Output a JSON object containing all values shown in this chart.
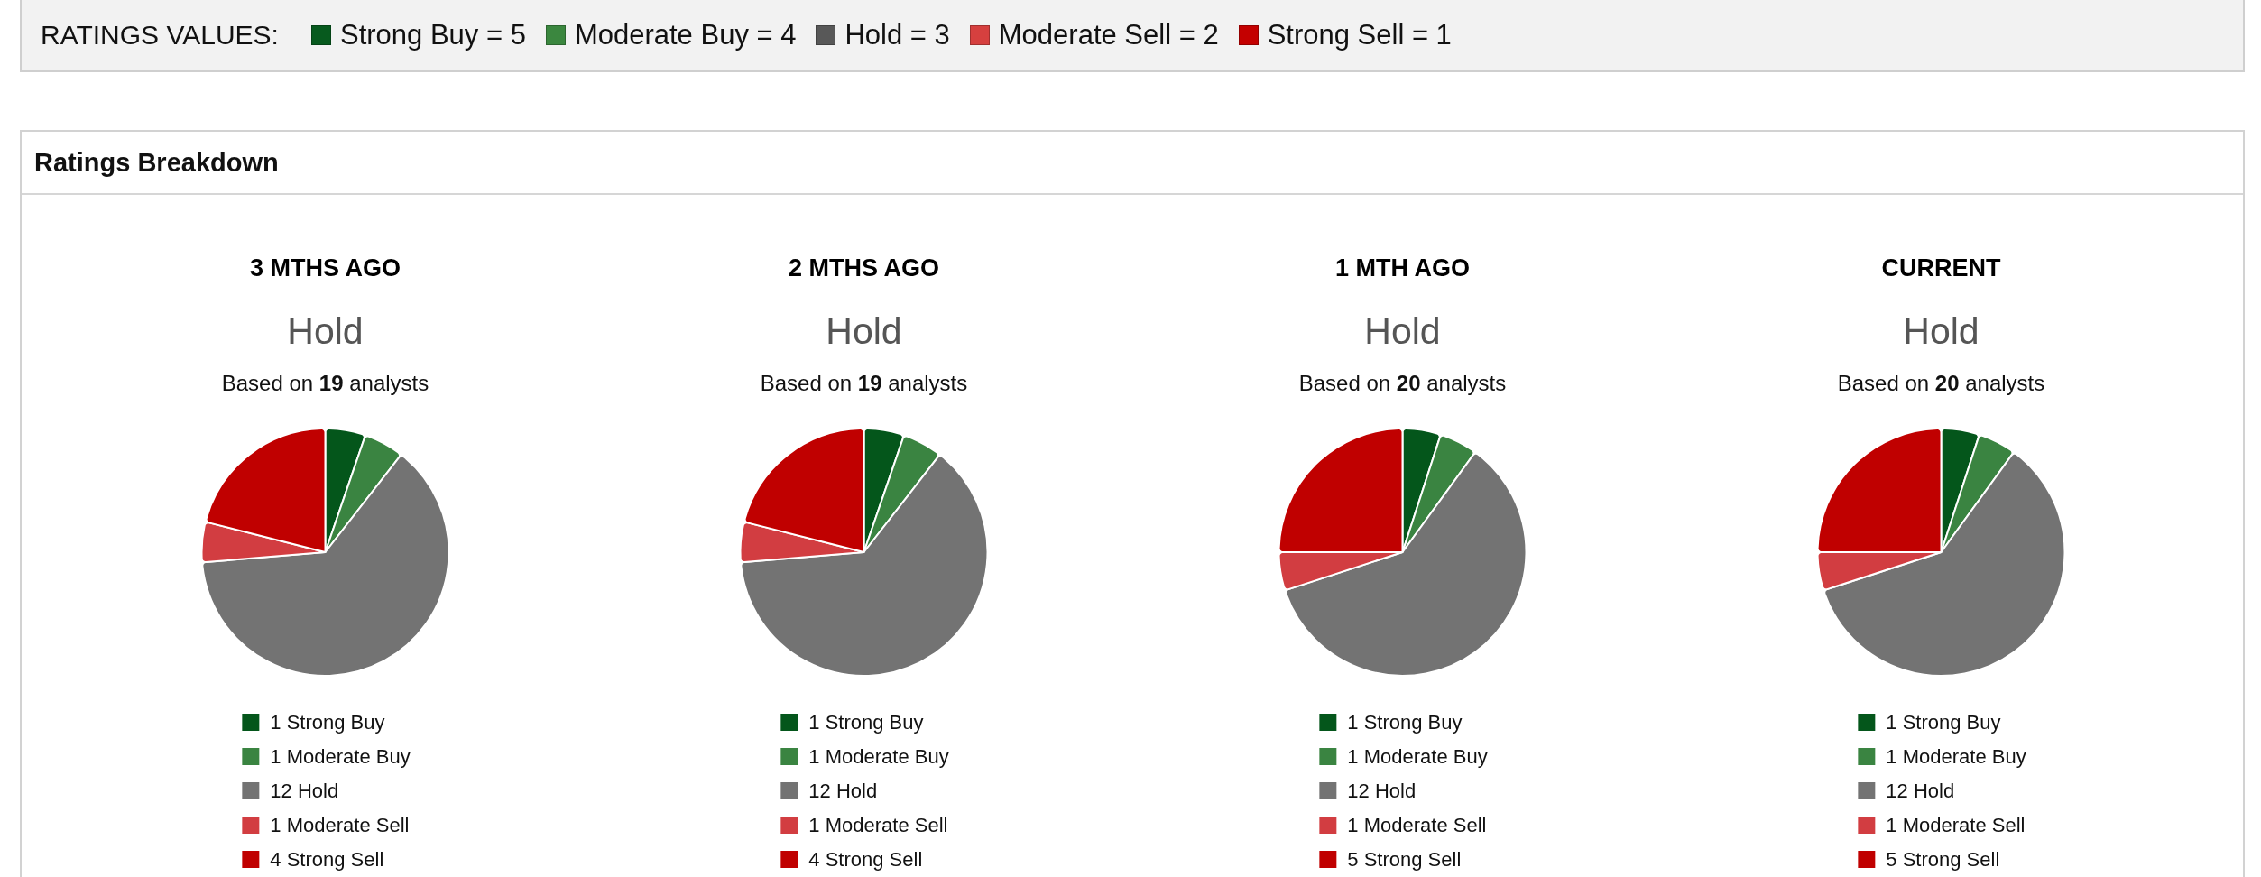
{
  "chart_data": [
    {
      "type": "other",
      "title": "RATINGS VALUES:",
      "categories": [
        "Strong Buy = 5",
        "Moderate Buy = 4",
        "Hold = 3",
        "Moderate Sell = 2",
        "Strong Sell = 1"
      ],
      "colors": [
        "#075a1e",
        "#3b873f",
        "#585858",
        "#d6403f",
        "#c40000"
      ]
    },
    {
      "type": "other",
      "title": "Ratings Breakdown"
    },
    {
      "type": "pie",
      "title": "3 MTHS AGO",
      "subtitle": "Hold",
      "annotations": [
        "Based on 19 analysts"
      ],
      "categories": [
        "1 Strong Buy",
        "1 Moderate Buy",
        "12 Hold",
        "1 Moderate Sell",
        "4 Strong Sell"
      ],
      "values": [
        1,
        1,
        12,
        1,
        4
      ],
      "colors": [
        "#04561b",
        "#3a8441",
        "#737373",
        "#d23d41",
        "#c00000"
      ],
      "legend": "bottom"
    },
    {
      "type": "pie",
      "title": "2 MTHS AGO",
      "subtitle": "Hold",
      "annotations": [
        "Based on 19 analysts"
      ],
      "categories": [
        "1 Strong Buy",
        "1 Moderate Buy",
        "12 Hold",
        "1 Moderate Sell",
        "4 Strong Sell"
      ],
      "values": [
        1,
        1,
        12,
        1,
        4
      ],
      "colors": [
        "#04561b",
        "#3a8441",
        "#737373",
        "#d23d41",
        "#c00000"
      ],
      "legend": "bottom"
    },
    {
      "type": "pie",
      "title": "1 MTH AGO",
      "subtitle": "Hold",
      "annotations": [
        "Based on 20 analysts"
      ],
      "categories": [
        "1 Strong Buy",
        "1 Moderate Buy",
        "12 Hold",
        "1 Moderate Sell",
        "5 Strong Sell"
      ],
      "values": [
        1,
        1,
        12,
        1,
        5
      ],
      "colors": [
        "#04561b",
        "#3a8441",
        "#737373",
        "#d23d41",
        "#c00000"
      ],
      "legend": "bottom"
    },
    {
      "type": "pie",
      "title": "CURRENT",
      "subtitle": "Hold",
      "annotations": [
        "Based on 20 analysts"
      ],
      "categories": [
        "1 Strong Buy",
        "1 Moderate Buy",
        "12 Hold",
        "1 Moderate Sell",
        "5 Strong Sell"
      ],
      "values": [
        1,
        1,
        12,
        1,
        5
      ],
      "colors": [
        "#04561b",
        "#3a8441",
        "#737373",
        "#d23d41",
        "#c00000"
      ],
      "legend": "bottom"
    }
  ]
}
